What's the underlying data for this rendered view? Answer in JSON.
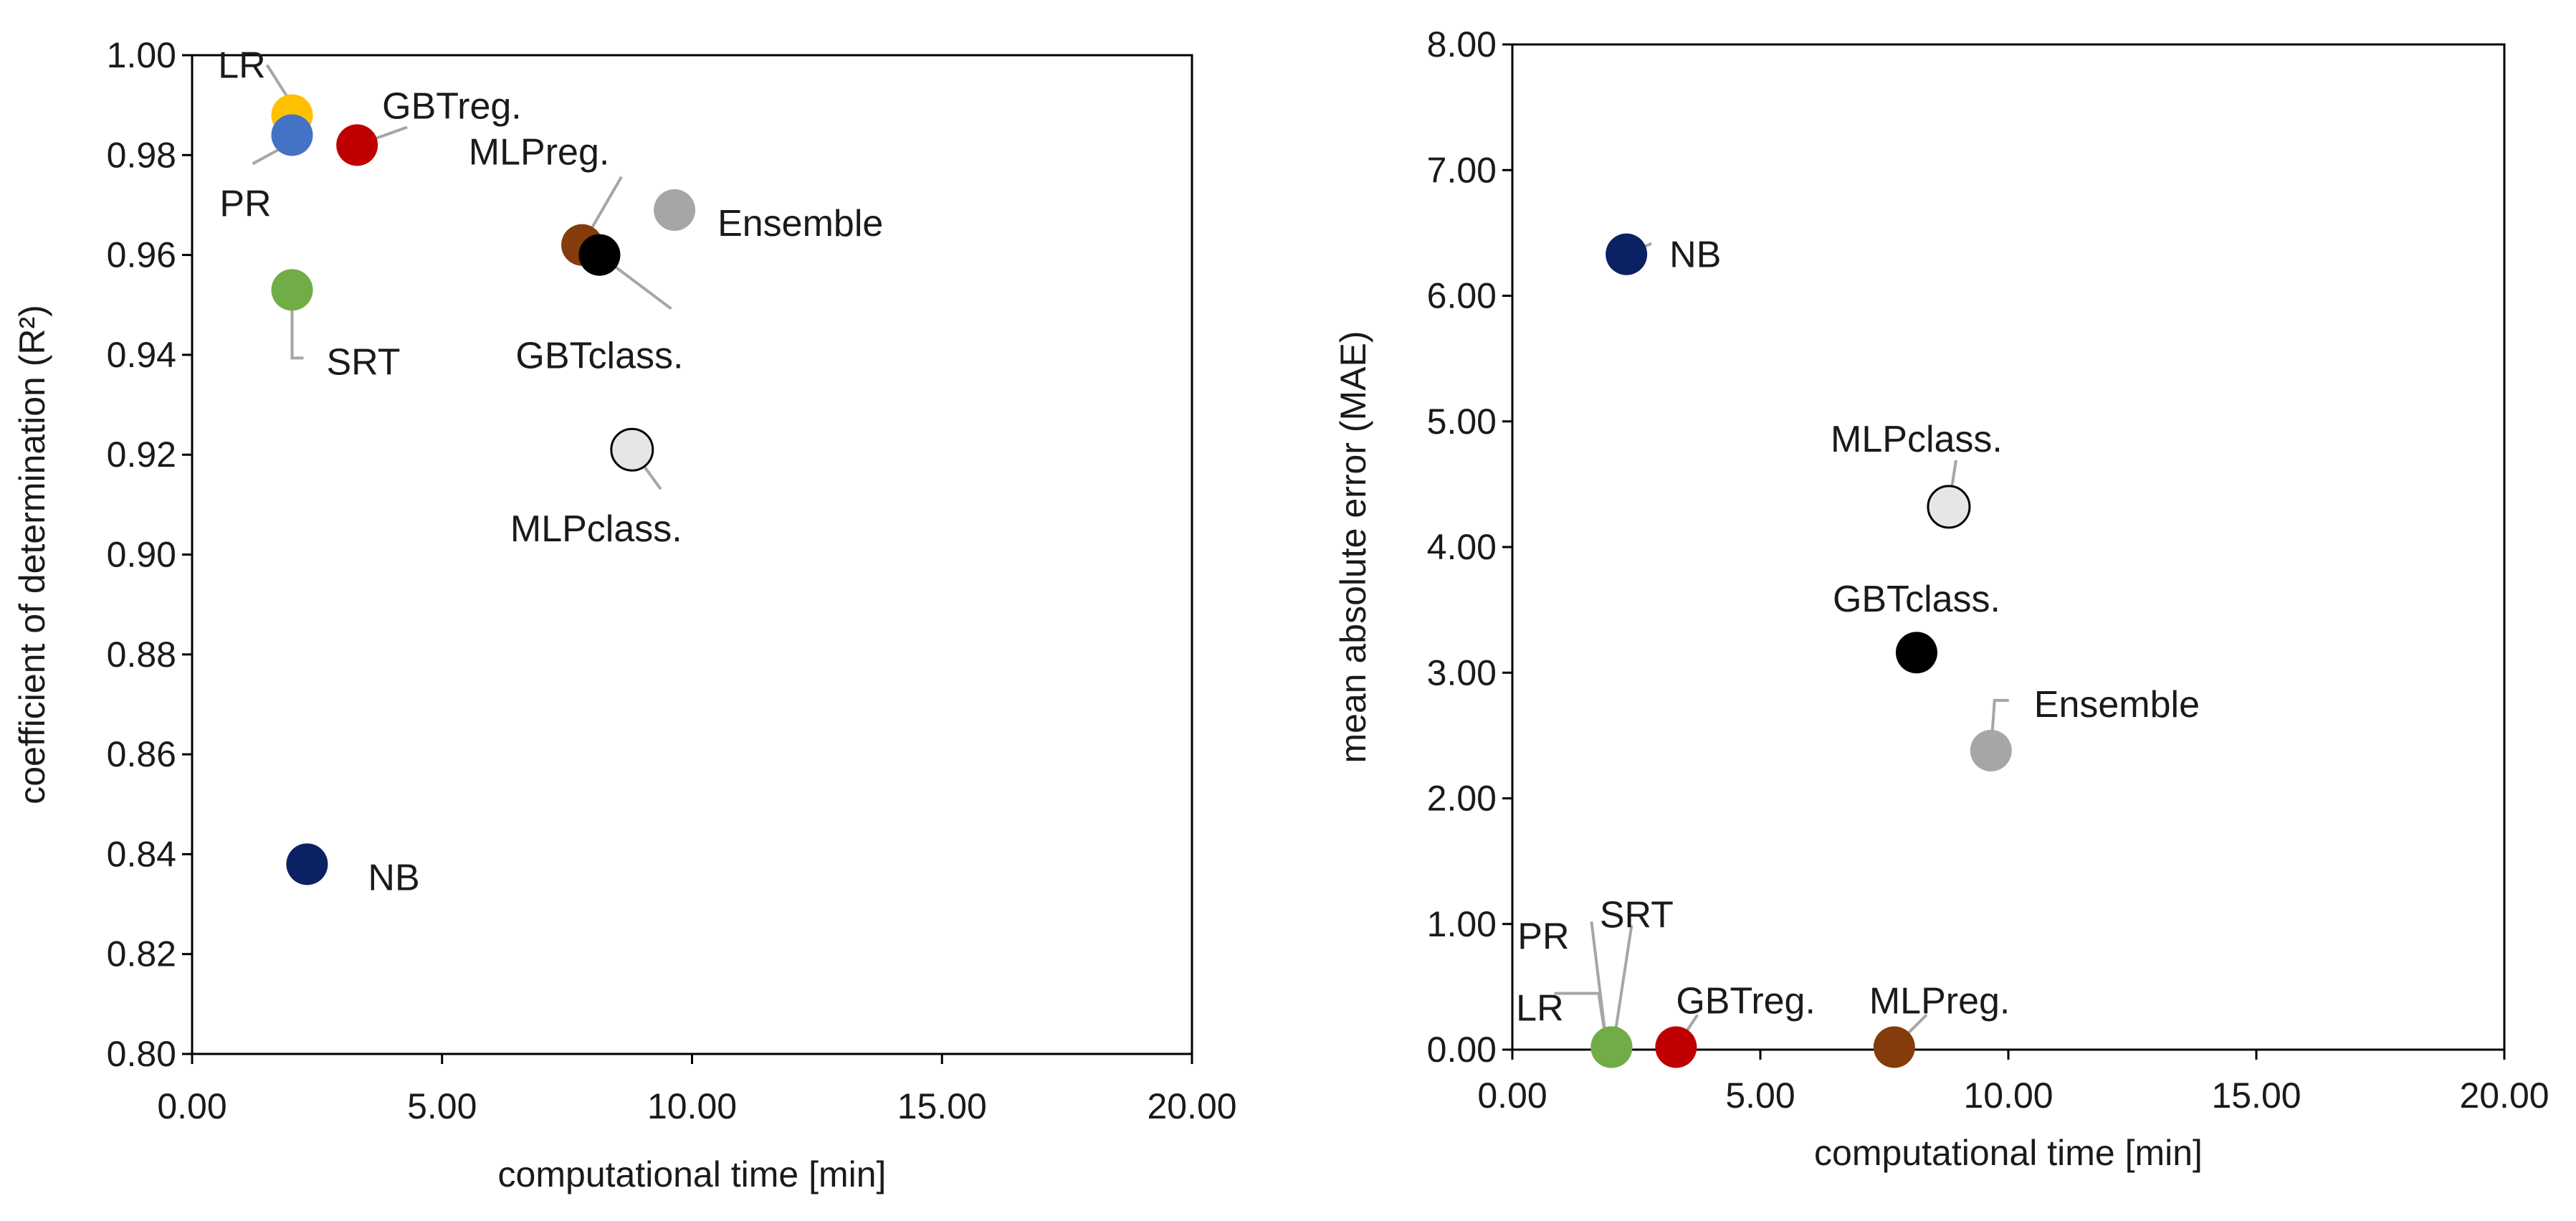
{
  "chart_data": [
    {
      "type": "scatter",
      "title": "",
      "xlabel": "computational time [min]",
      "ylabel": "coefficient of determination (R²)",
      "xlim": [
        0,
        20
      ],
      "ylim": [
        0.8,
        1.0
      ],
      "grid": false,
      "x_ticks": [
        "0.00",
        "5.00",
        "10.00",
        "15.00",
        "20.00"
      ],
      "y_ticks": [
        "0.80",
        "0.82",
        "0.84",
        "0.86",
        "0.88",
        "0.90",
        "0.92",
        "0.94",
        "0.96",
        "0.98",
        "1.00"
      ],
      "points": [
        {
          "label": "NB",
          "x": 2.3,
          "y": 0.838,
          "color": "#0b2164"
        },
        {
          "label": "SRT",
          "x": 2.0,
          "y": 0.953,
          "color": "#70ad47"
        },
        {
          "label": "MLPreg.",
          "x": 7.8,
          "y": 0.962,
          "color": "#843c0c"
        },
        {
          "label": "GBTclass.",
          "x": 8.15,
          "y": 0.96,
          "color": "#000000"
        },
        {
          "label": "Ensemble",
          "x": 9.65,
          "y": 0.969,
          "color": "#a6a6a6"
        },
        {
          "label": "MLPclass.",
          "x": 8.8,
          "y": 0.921,
          "color": "#e6e6e6"
        },
        {
          "label": "GBTreg.",
          "x": 3.3,
          "y": 0.982,
          "color": "#c00000"
        },
        {
          "label": "LR",
          "x": 2.0,
          "y": 0.988,
          "color": "#ffc000"
        },
        {
          "label": "PR",
          "x": 2.0,
          "y": 0.984,
          "color": "#4472c4"
        }
      ]
    },
    {
      "type": "scatter",
      "title": "",
      "xlabel": "computational time [min]",
      "ylabel": "mean absolute error (MAE)",
      "xlim": [
        0,
        20
      ],
      "ylim": [
        0,
        8
      ],
      "grid": false,
      "x_ticks": [
        "0.00",
        "5.00",
        "10.00",
        "15.00",
        "20.00"
      ],
      "y_ticks": [
        "0.00",
        "1.00",
        "2.00",
        "3.00",
        "4.00",
        "5.00",
        "6.00",
        "7.00",
        "8.00"
      ],
      "points": [
        {
          "label": "NB",
          "x": 2.3,
          "y": 6.33,
          "color": "#0b2164"
        },
        {
          "label": "MLPclass.",
          "x": 8.8,
          "y": 4.32,
          "color": "#e6e6e6"
        },
        {
          "label": "GBTclass.",
          "x": 8.15,
          "y": 3.16,
          "color": "#000000"
        },
        {
          "label": "Ensemble",
          "x": 9.65,
          "y": 2.38,
          "color": "#a6a6a6"
        },
        {
          "label": "LR",
          "x": 2.0,
          "y": 0.02,
          "color": "#ffc000"
        },
        {
          "label": "PR",
          "x": 2.0,
          "y": 0.02,
          "color": "#4472c4"
        },
        {
          "label": "SRT",
          "x": 2.0,
          "y": 0.02,
          "color": "#70ad47"
        },
        {
          "label": "GBTreg.",
          "x": 3.3,
          "y": 0.02,
          "color": "#c00000"
        },
        {
          "label": "MLPreg.",
          "x": 7.7,
          "y": 0.02,
          "color": "#843c0c"
        }
      ]
    }
  ]
}
